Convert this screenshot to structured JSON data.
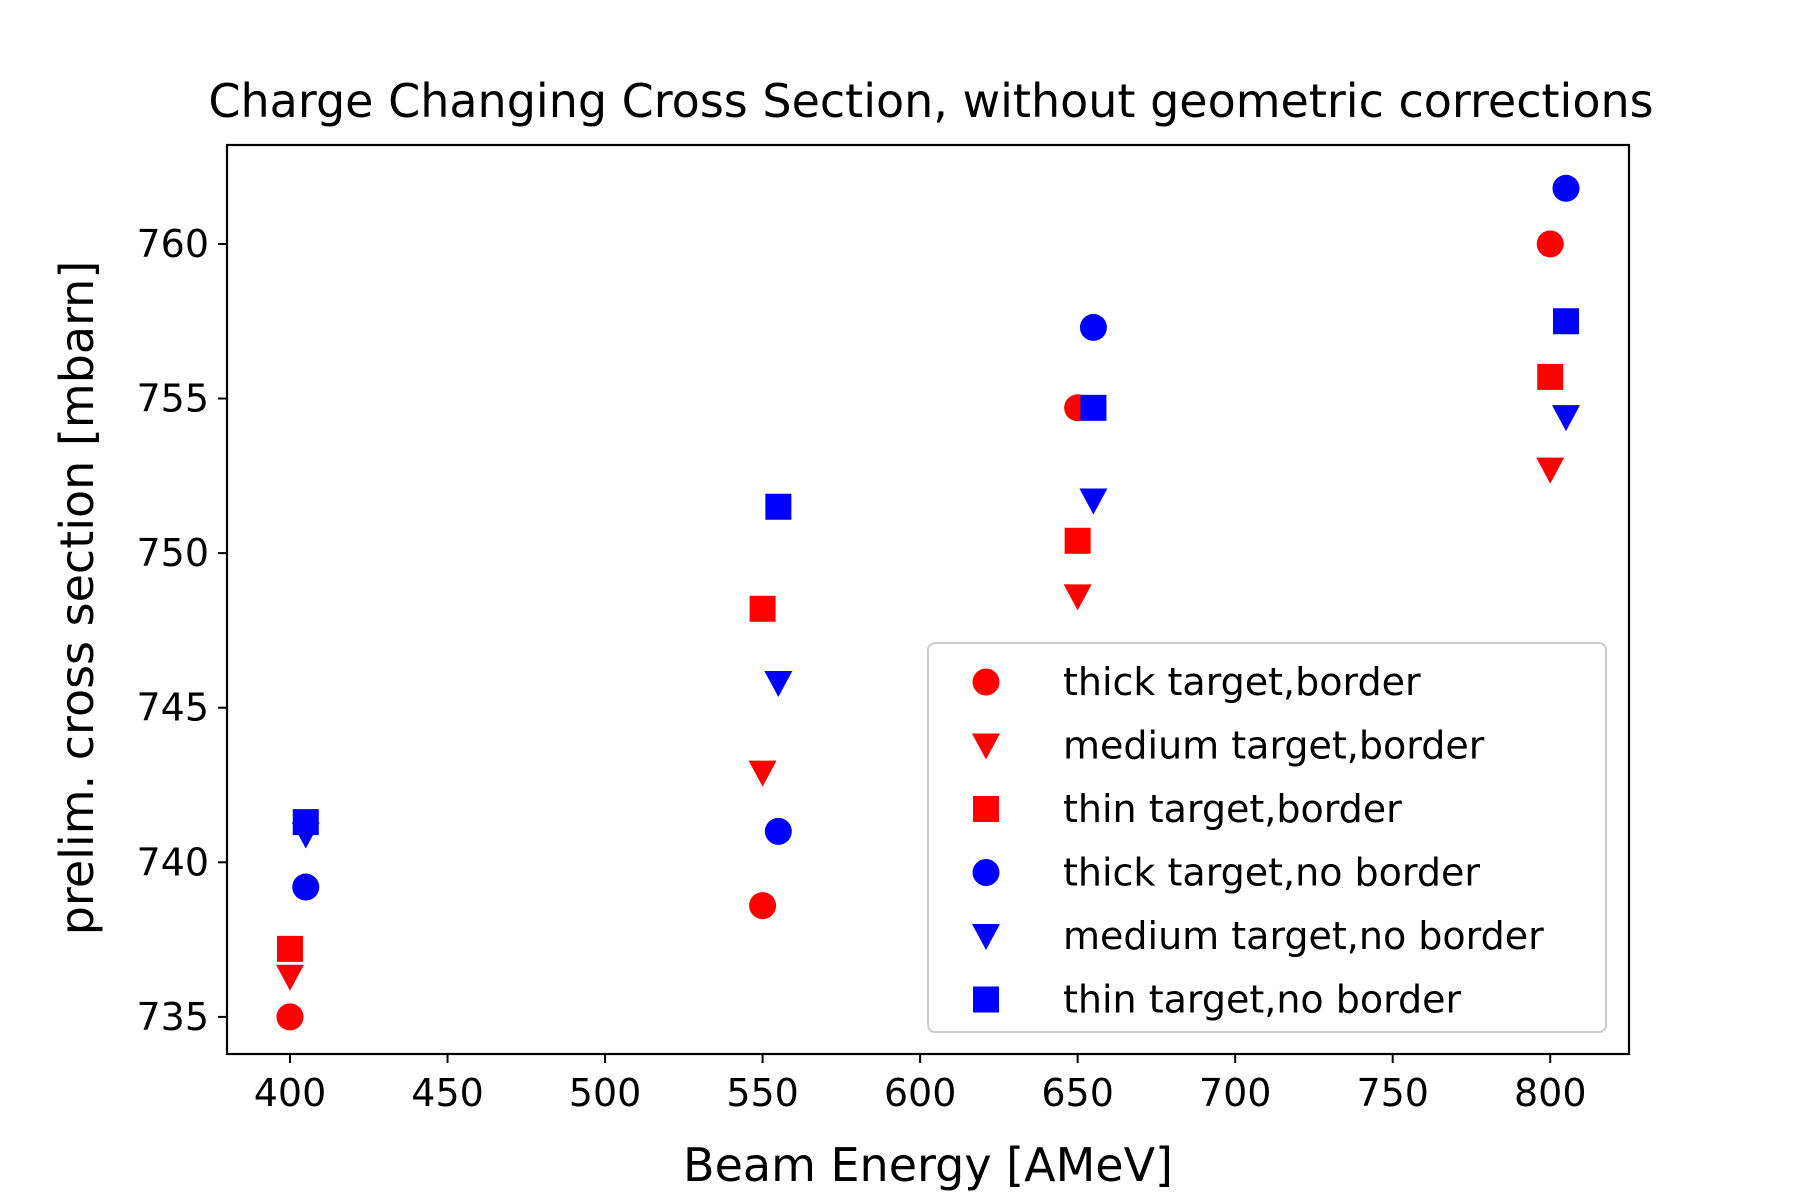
{
  "chart_data": {
    "type": "scatter",
    "title": "Charge Changing Cross Section, without geometric corrections",
    "xlabel": "Beam Energy [AMeV]",
    "ylabel": "prelim. cross section [mbarn]",
    "xlim": [
      380,
      825
    ],
    "ylim": [
      733.8,
      763.2
    ],
    "xticks": [
      400,
      450,
      500,
      550,
      600,
      650,
      700,
      750,
      800
    ],
    "yticks": [
      735,
      740,
      745,
      750,
      755,
      760
    ],
    "grid": false,
    "legend_position": "lower right",
    "series": [
      {
        "name": "thick target,border",
        "marker": "circle",
        "color": "#ff0000",
        "x": [
          400,
          550,
          650,
          800
        ],
        "y": [
          735.0,
          738.6,
          754.7,
          760.0
        ]
      },
      {
        "name": "medium target,border",
        "marker": "triangle-down",
        "color": "#ff0000",
        "x": [
          400,
          550,
          650,
          800
        ],
        "y": [
          736.3,
          742.9,
          748.6,
          752.7
        ]
      },
      {
        "name": "thin target,border",
        "marker": "square",
        "color": "#ff0000",
        "x": [
          400,
          550,
          650,
          800
        ],
        "y": [
          737.2,
          748.2,
          750.4,
          755.7
        ]
      },
      {
        "name": "thick target,no border",
        "marker": "circle",
        "color": "#0000ff",
        "x": [
          405,
          555,
          655,
          805
        ],
        "y": [
          739.2,
          741.0,
          757.3,
          761.8
        ]
      },
      {
        "name": "medium target,no border",
        "marker": "triangle-down",
        "color": "#0000ff",
        "x": [
          405,
          555,
          655,
          805
        ],
        "y": [
          740.9,
          745.8,
          751.7,
          754.4
        ]
      },
      {
        "name": "thin target,no border",
        "marker": "square",
        "color": "#0000ff",
        "x": [
          405,
          555,
          655,
          805
        ],
        "y": [
          741.3,
          751.5,
          754.7,
          757.5
        ]
      }
    ]
  }
}
